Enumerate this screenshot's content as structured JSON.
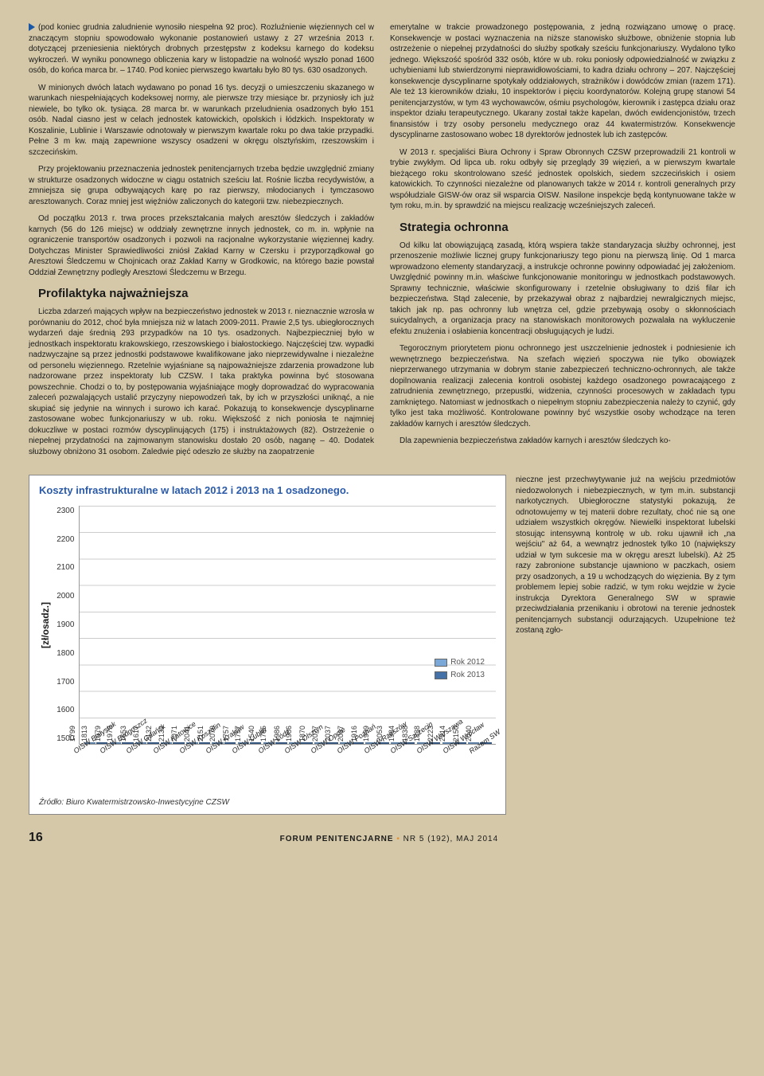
{
  "left": {
    "p1": "(pod koniec grudnia zaludnienie wynosiło niespełna 92 proc). Rozluźnienie więziennych cel w znaczącym stopniu spowodowało wykonanie postanowień ustawy z 27 września 2013 r. dotyczącej przeniesienia niektórych drobnych przestępstw z kodeksu karnego do kodeksu wykroczeń. W wyniku ponownego obliczenia kary w listopadzie na wolność wyszło ponad 1600 osób, do końca marca br. – 1740. Pod koniec pierwszego kwartału było 80 tys. 630 osadzonych.",
    "p2": "W minionych dwóch latach wydawano po ponad 16 tys. decyzji o umieszczeniu skazanego w warunkach niespełniających kodeksowej normy, ale pierwsze trzy miesiące br. przyniosły ich już niewiele, bo tylko ok. tysiąca. 28 marca br. w warunkach przeludnienia osadzonych było 151 osób. Nadal ciasno jest w celach jednostek katowickich, opolskich i łódzkich. Inspektoraty w Koszalinie, Lublinie i Warszawie odnotowały w pierwszym kwartale roku po dwa takie przypadki. Pełne 3 m kw. mają zapewnione wszyscy osadzeni w okręgu olsztyńskim, rzeszowskim i szczecińskim.",
    "p3": "Przy projektowaniu przeznaczenia jednostek penitencjarnych trzeba będzie uwzględnić zmiany w strukturze osadzonych widoczne w ciągu ostatnich sześciu lat. Rośnie liczba recydywistów, a zmniejsza się grupa odbywających karę po raz pierwszy, młodocianych i tymczasowo aresztowanych. Coraz mniej jest więźniów zaliczonych do kategorii tzw. niebezpiecznych.",
    "p4": "Od początku 2013 r. trwa proces przekształcania małych aresztów śledczych i zakładów karnych (56 do 126 miejsc) w oddziały zewnętrzne innych jednostek, co m. in. wpłynie na ograniczenie transportów osadzonych i pozwoli na racjonalne wykorzystanie więziennej kadry. Dotychczas Minister Sprawiedliwości zniósł Zakład Karny w Czersku i przyporządkował go Aresztowi Śledczemu w Chojnicach oraz Zakład Karny w Grodkowic, na którego bazie powstał Oddział Zewnętrzny podległy Aresztowi Śledczemu w Brzegu.",
    "h1": "Profilaktyka najważniejsza",
    "p5": "Liczba zdarzeń mających wpływ na bezpieczeństwo jednostek w 2013 r. nieznacznie wzrosła w porównaniu do 2012, choć była mniejsza niż w latach 2009-2011. Prawie 2,5 tys. ubiegłorocznych wydarzeń daje średnią 293 przypadków na 10 tys. osadzonych. Najbezpieczniej było w jednostkach inspektoratu krakowskiego, rzeszowskiego i białostockiego. Najczęściej tzw. wypadki nadzwyczajne są przez jednostki podstawowe kwalifikowane jako nieprzewidywalne i niezależne od personelu więziennego. Rzetelnie wyjaśniane są najpoważniejsze zdarzenia prowadzone lub nadzorowane przez inspektoraty lub CZSW. I taka praktyka powinna być stosowana powszechnie. Chodzi o to, by postępowania wyjaśniające mogły doprowadzać do wypracowania zaleceń pozwalających ustalić przyczyny niepowodzeń tak, by ich w przyszłości uniknąć, a nie skupiać się jedynie na winnych i surowo ich karać. Pokazują to konsekwencje dyscyplinarne zastosowane wobec funkcjonariuszy w ub. roku. Większość z nich poniosła te najmniej dokuczliwe w postaci rozmów dyscyplinujących (175) i instruktażowych (82). Ostrzeżenie o niepełnej przydatności na zajmowanym stanowisku dostało 20 osób, naganę – 40. Dodatek służbowy obniżono 31 osobom. Zaledwie pięć odeszło ze służby na zaopatrzenie"
  },
  "right": {
    "p1": "emerytalne w trakcie prowadzonego postępowania, z jedną rozwiązano umowę o pracę. Konsekwencje w postaci wyznaczenia na niższe stanowisko służbowe, obniżenie stopnia lub ostrzeżenie o niepełnej przydatności do służby spotkały sześciu funkcjonariuszy. Wydalono tylko jednego. Większość spośród 332 osób, które w ub. roku poniosły odpowiedzialność w związku z uchybieniami lub stwierdzonymi nieprawidłowościami, to kadra działu ochrony – 207. Najczęściej konsekwencje dyscyplinarne spotykały oddziałowych, strażników i dowódców zmian (razem 171). Ale też 13 kierowników działu, 10 inspektorów i pięciu koordynatorów. Kolejną grupę stanowi 54 penitencjarzystów, w tym 43 wychowawców, ośmiu psychologów, kierownik i zastępca działu oraz inspektor działu terapeutycznego. Ukarany został także kapelan, dwóch ewidencjonistów, trzech finansistów i trzy osoby personelu medycznego oraz 44 kwatermistrzów. Konsekwencje dyscyplinarne zastosowano wobec 18 dyrektorów jednostek lub ich zastępców.",
    "p2": "W 2013 r. specjaliści Biura Ochrony i Spraw Obronnych CZSW przeprowadzili 21 kontroli w trybie zwykłym. Od lipca ub. roku odbyły się przeglądy 39 więzień, a w pierwszym kwartale bieżącego roku skontrolowano sześć jednostek opolskich, siedem szczecińskich i osiem katowickich. To czynności niezależne od planowanych także w 2014 r. kontroli generalnych przy współudziale GISW-ów oraz sił wsparcia OISW. Nasilone inspekcje będą kontynuowane także w tym roku, m.in. by sprawdzić na miejscu realizację wcześniejszych zaleceń.",
    "h1": "Strategia ochronna",
    "p3": "Od kilku lat obowiązującą zasadą, którą wspiera także standaryzacja służby ochronnej, jest przenoszenie możliwie licznej grupy funkcjonariuszy tego pionu na pierwszą linię. Od 1 marca wprowadzono elementy standaryzacji, a instrukcje ochronne powinny odpowiadać jej założeniom. Uwzględnić powinny m.in. właściwe funkcjonowanie monitoringu w jednostkach podstawowych. Sprawny technicznie, właściwie skonfigurowany i rzetelnie obsługiwany to dziś filar ich bezpieczeństwa. Stąd zalecenie, by przekazywał obraz z najbardziej newralgicznych miejsc, takich jak np. pas ochronny lub wnętrza cel, gdzie przebywają osoby o skłonnościach suicydalnych, a organizacja pracy na stanowiskach monitorowych pozwalała na wykluczenie efektu znużenia i osłabienia koncentracji obsługujących je ludzi.",
    "p4": "Tegorocznym priorytetem pionu ochronnego jest uszczelnienie jednostek i podniesienie ich wewnętrznego bezpieczeństwa. Na szefach więzień spoczywa nie tylko obowiązek nieprzerwanego utrzymania w dobrym stanie zabezpieczeń techniczno-ochronnych, ale także dopilnowania realizacji zalecenia kontroli osobistej każdego osadzonego powracającego z zatrudnienia zewnętrznego, przepustki, widzenia, czynności procesowych w zakładach typu zamkniętego. Natomiast w jednostkach o niepełnym stopniu zabezpieczenia należy to czynić, gdy tylko jest taka możliwość. Kontrolowane powinny być wszystkie osoby wchodzące na teren zakładów karnych i aresztów śledczych.",
    "p5": "Dla zapewnienia bezpieczeństwa zakładów karnych i aresztów śledczych ko-"
  },
  "side": "nieczne jest przechwytywanie już na wejściu przedmiotów niedozwolonych i niebezpiecznych, w tym m.in. substancji narkotycznych. Ubiegłoroczne statystyki pokazują, że odnotowujemy w tej materii dobre rezultaty, choć nie są one udziałem wszystkich okręgów. Niewielki inspektorat lubelski stosując intensywną kontrolę w ub. roku ujawnił ich „na wejściu\" aż 64, a wewnątrz jednostek tylko 10 (największy udział w tym sukcesie ma w okręgu areszt lubelski). Aż 25 razy zabronione substancje ujawniono w paczkach, osiem przy osadzonych, a 19 u wchodzących do więzienia. By z tym problemem lepiej sobie radzić, w tym roku wejdzie w życie instrukcja Dyrektora Generalnego SW w sprawie przeciwdziałania przenikaniu i obrotowi na terenie jednostek penitencjarnych substancji odurzających. Uzupełnione też zostaną zgło-",
  "chart": {
    "title": "Koszty infrastrukturalne w latach 2012 i 2013 na 1 osadzonego.",
    "y_label": "[zł/osadz.]",
    "y_min": 1500,
    "y_max": 2300,
    "y_step": 100,
    "legend": [
      {
        "label": "Rok 2012",
        "color": "#7aa8d8"
      },
      {
        "label": "Rok 2013",
        "color": "#4472a8"
      }
    ],
    "colors": {
      "2012": "#7aa8d8",
      "2013": "#4472a8"
    },
    "categories": [
      "OISW Białystok",
      "OISW Bydgoszcz",
      "OISW Gdańsk",
      "OISW Katowice",
      "OISW Koszalin",
      "OISW Kraków",
      "OISW Lublin",
      "OISW Łódź",
      "OISW Olsztyn",
      "OISW Opole",
      "OISW Poznań",
      "OISW Rzeszów",
      "OISW Szczecin",
      "OISW Warszawa",
      "OISW Wrocław",
      "Razem SW"
    ],
    "series": {
      "2012": [
        1799,
        1979,
        1653,
        2132,
        2071,
        2151,
        1757,
        1540,
        1986,
        1870,
        2037,
        1916,
        2053,
        1838,
        2223,
        2150
      ],
      "2013": [
        1813,
        1979,
        1617,
        2132,
        2041,
        2079,
        1757,
        1785,
        1986,
        2077,
        2037,
        1999,
        1984,
        1838,
        2214,
        2040
      ]
    },
    "source": "Źródło: Biuro Kwatermistrzowsko-Inwestycyjne CZSW",
    "background": "#ffffff",
    "grid_color": "#cccccc"
  },
  "footer": {
    "page": "16",
    "journal": "FORUM PENITENCJARNE",
    "sep": "•",
    "issue": "NR 5 (192), MAJ 2014"
  }
}
